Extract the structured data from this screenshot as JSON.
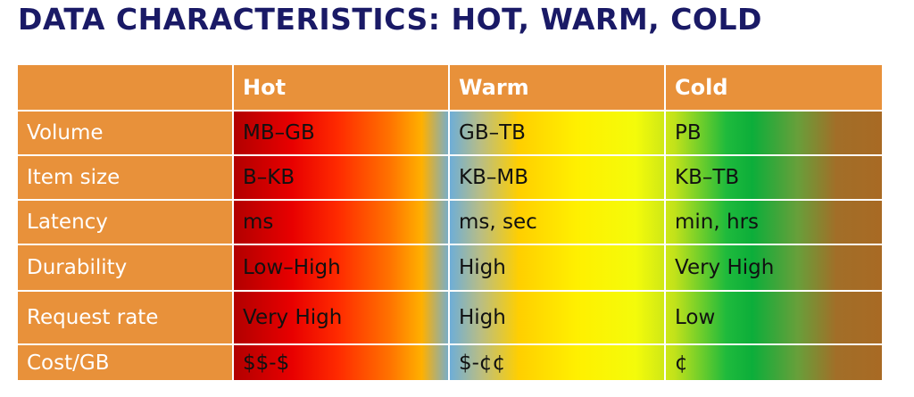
{
  "slide": {
    "title": "DATA CHARACTERISTICS: HOT, WARM, COLD"
  },
  "table": {
    "corner": "",
    "columns": [
      "Hot",
      "Warm",
      "Cold"
    ],
    "rows": [
      {
        "label": "Volume",
        "values": [
          "MB–GB",
          "GB–TB",
          "PB"
        ]
      },
      {
        "label": "Item size",
        "values": [
          "B–KB",
          "KB–MB",
          "KB–TB"
        ]
      },
      {
        "label": "Latency",
        "values": [
          "ms",
          "ms, sec",
          "min, hrs"
        ]
      },
      {
        "label": "Durability",
        "values": [
          "Low–High",
          "High",
          "Very High"
        ]
      },
      {
        "label": "Request rate",
        "values": [
          "Very High",
          "High",
          "Low"
        ]
      },
      {
        "label": "Cost/GB",
        "values": [
          "$$-$",
          "$-¢¢",
          "¢"
        ]
      }
    ]
  },
  "colors": {
    "title": "#1a1a66",
    "header_bg": "#e8913a",
    "hot": "#e80000",
    "warm": "#ffcf00",
    "cold": "#0cae3a"
  }
}
